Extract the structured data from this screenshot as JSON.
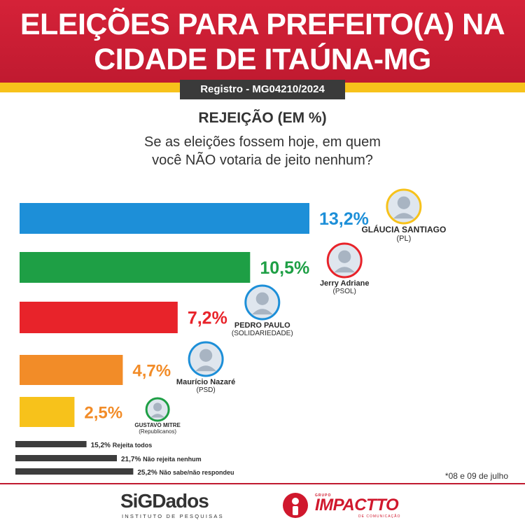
{
  "header": {
    "title_line1": "ELEIÇÕES PARA PREFEITO(A) NA",
    "title_line2": "CIDADE DE ITAÚNA-MG",
    "registro": "Registro - MG04210/2024"
  },
  "subtitle": "REJEIÇÃO (EM %)",
  "question_line1": "Se as eleições fossem hoje, em quem",
  "question_line2": "você NÃO votaria de jeito nenhum?",
  "colors": {
    "header_red": "#c01a30",
    "yellow": "#f7c21b",
    "blue": "#1d8fd8",
    "green": "#1e9f45",
    "red": "#e8232a",
    "orange": "#f28c28",
    "gold": "#f7c21b",
    "dark": "#3d3d3d"
  },
  "chart_data": {
    "type": "bar",
    "orientation": "horizontal",
    "unit": "%",
    "categories": [
      "GLÁUCIA SANTIAGO",
      "Jerry Adriane",
      "PEDRO PAULO",
      "Maurício Nazaré",
      "GUSTAVO MITRE"
    ],
    "parties": [
      "(PL)",
      "(PSOL)",
      "(SOLIDARIEDADE)",
      "(PSD)",
      "(Republicanos)"
    ],
    "values": [
      13.2,
      10.5,
      7.2,
      4.7,
      2.5
    ],
    "value_labels": [
      "13,2%",
      "10,5%",
      "7,2%",
      "4,7%",
      "2,5%"
    ],
    "bar_colors": [
      "#1d8fd8",
      "#1e9f45",
      "#e8232a",
      "#f28c28",
      "#f7c21b"
    ],
    "label_colors": [
      "#1d8fd8",
      "#1e9f45",
      "#e8232a",
      "#f28c28",
      "#f28c28"
    ],
    "avatar_rings": [
      "#f7c21b",
      "#e8232a",
      "#1d8fd8",
      "#1d8fd8",
      "#1e9f45"
    ],
    "avatar_icons": [
      "person-avatar-icon",
      "person-avatar-icon",
      "person-avatar-icon",
      "person-avatar-icon",
      "person-avatar-icon"
    ],
    "other_categories": [
      "Rejeita todos",
      "Não rejeita nenhum",
      "Não sabe/não respondeu"
    ],
    "other_values": [
      15.2,
      21.7,
      25.2
    ],
    "other_labels": [
      "15,2%",
      "21,7%",
      "25,2%"
    ],
    "other_color": "#3d3d3d"
  },
  "footnote": "*08 e 09 de julho",
  "logos": {
    "sig_text": "SiG",
    "sig_dados": "Dados",
    "sig_sub": "INSTITUTO DE PESQUISAS",
    "impactto_grupo": "GRUPO",
    "impactto_text": "IMPACTTO",
    "impactto_sub": "DE COMUNICAÇÃO"
  }
}
